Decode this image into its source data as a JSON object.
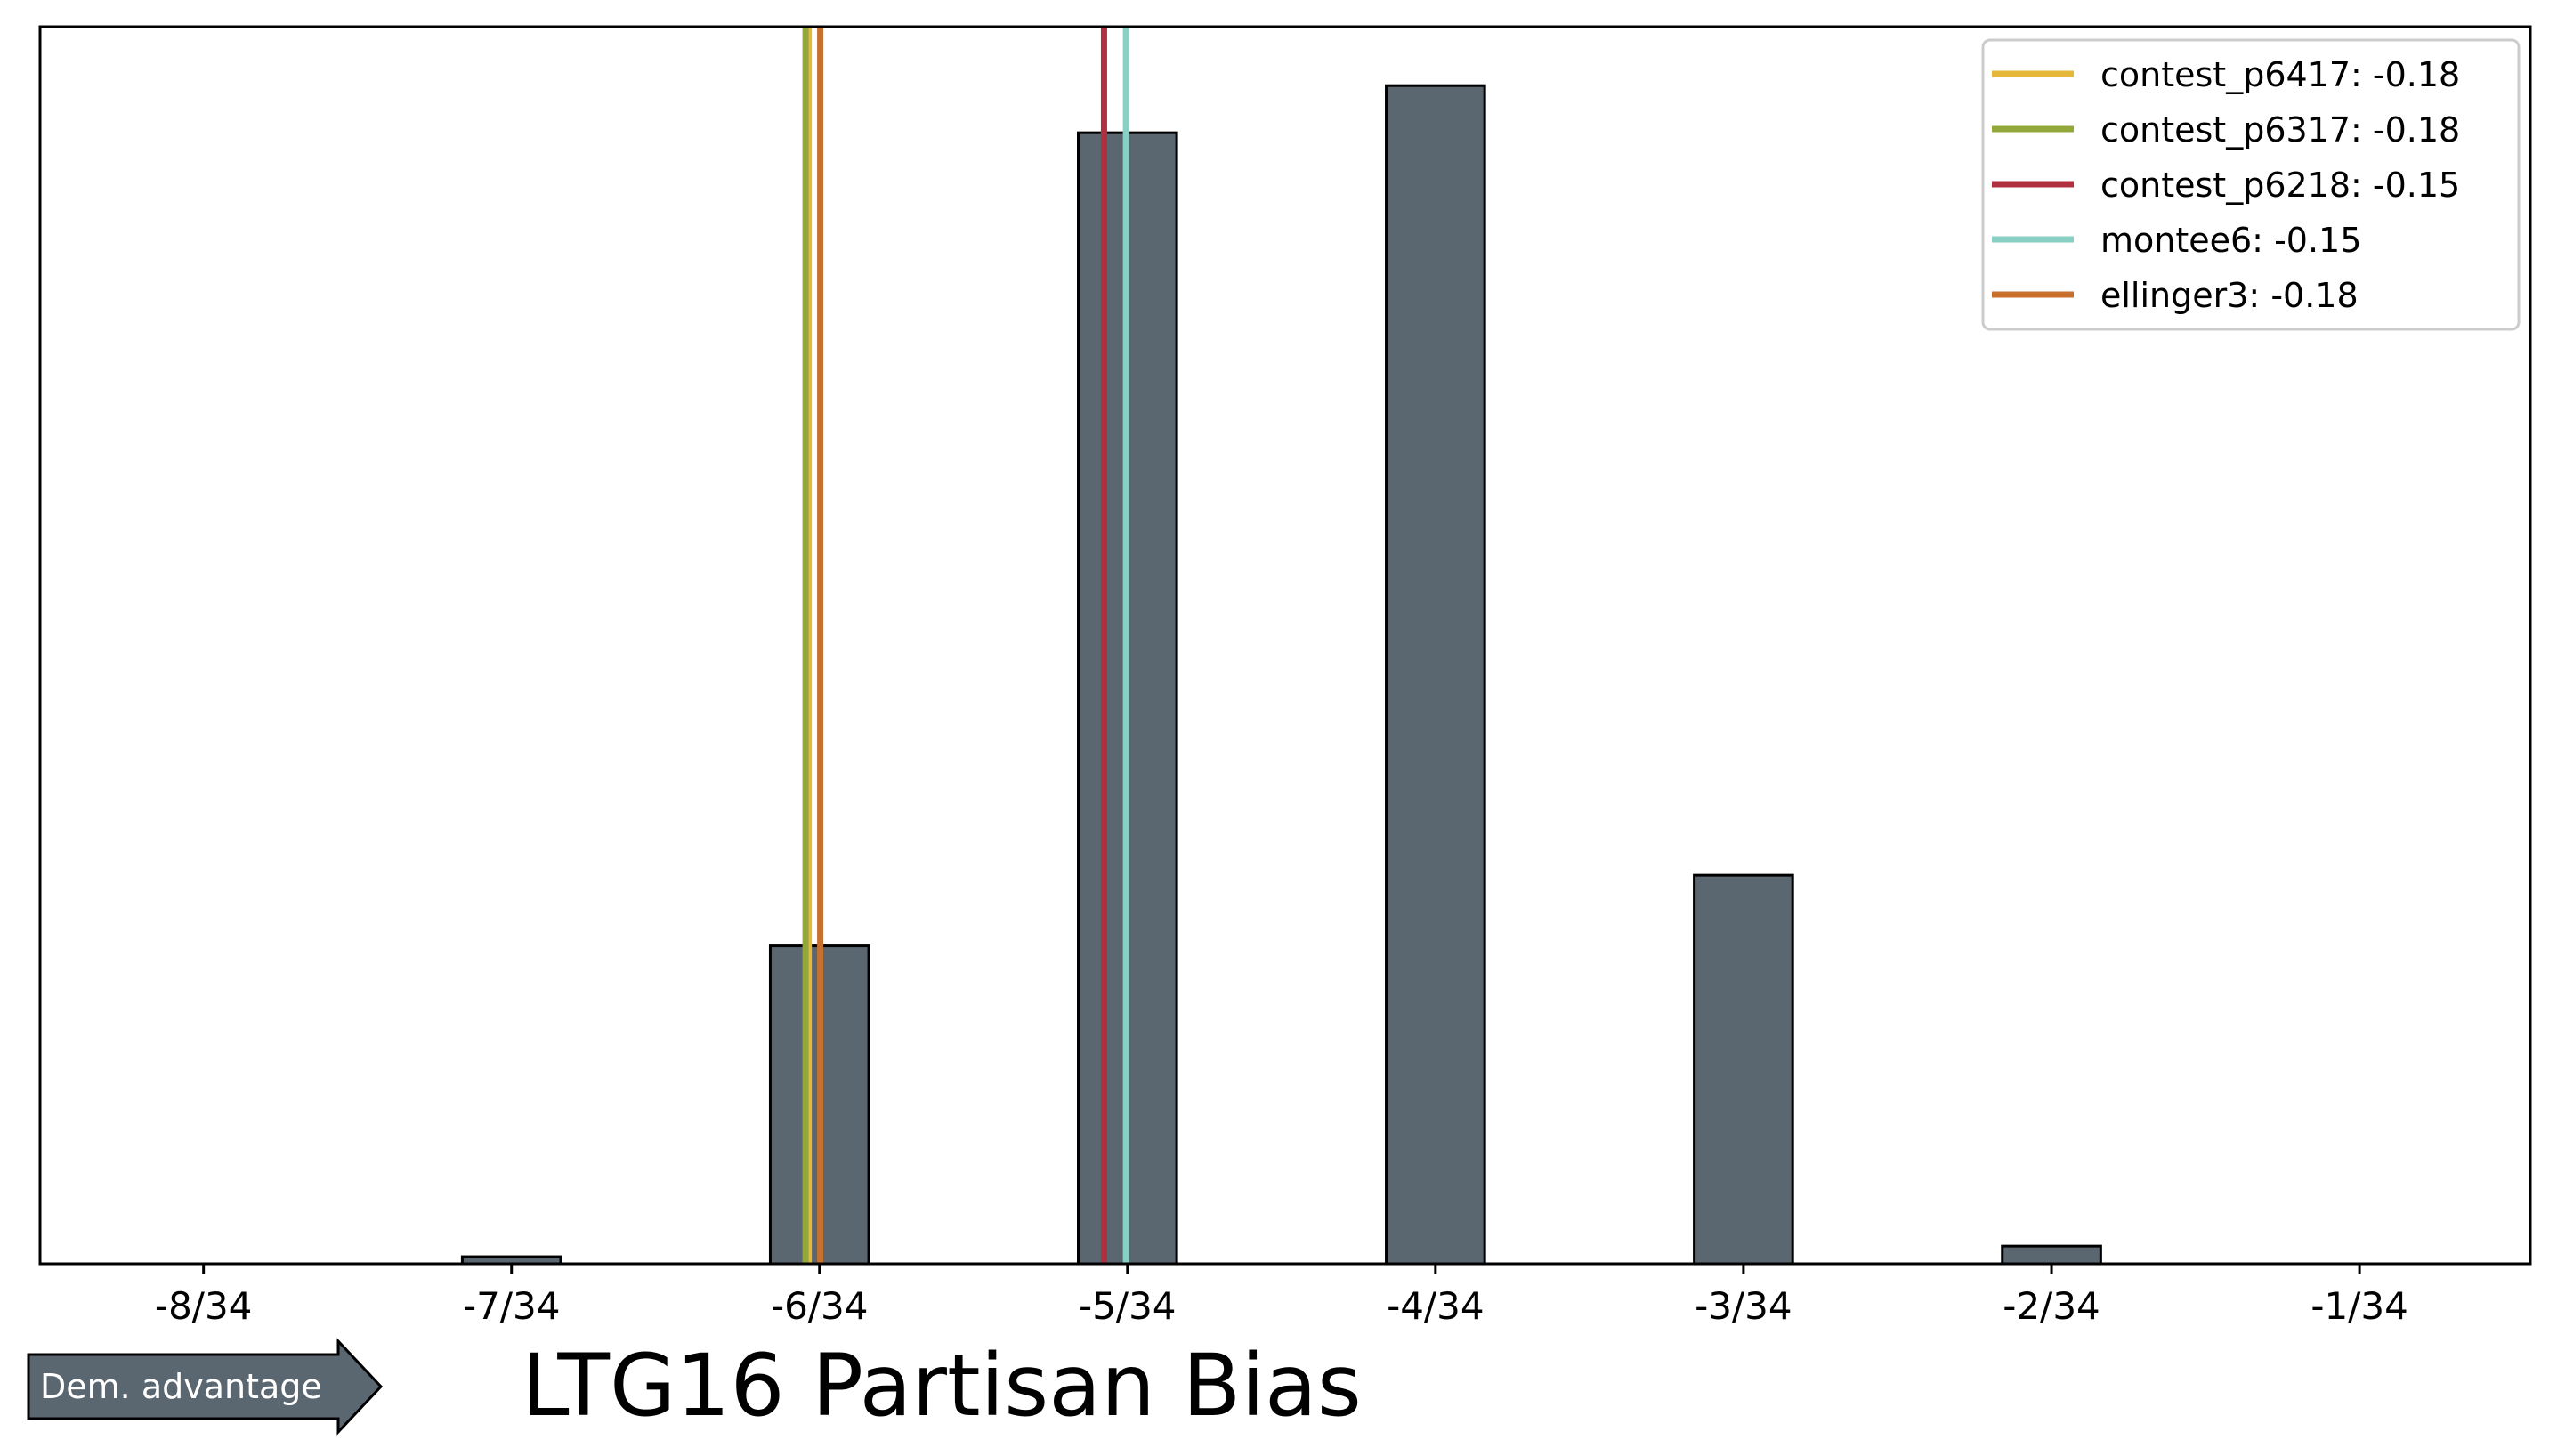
{
  "chart_data": {
    "type": "bar",
    "title": "LTG16 Partisan Bias",
    "xlabel": "",
    "ylabel": "",
    "x_ticks": [
      {
        "value": -0.23529,
        "label": "-8/34"
      },
      {
        "value": -0.20588,
        "label": "-7/34"
      },
      {
        "value": -0.17647,
        "label": "-6/34"
      },
      {
        "value": -0.14706,
        "label": "-5/34"
      },
      {
        "value": -0.11765,
        "label": "-4/34"
      },
      {
        "value": -0.08824,
        "label": "-3/34"
      },
      {
        "value": -0.05882,
        "label": "-2/34"
      },
      {
        "value": -0.02941,
        "label": "-1/34"
      }
    ],
    "xlim": [
      -0.2509,
      -0.0131
    ],
    "ylim": [
      0,
      1.05
    ],
    "bar_width": 0.0094,
    "bar_color": "#5a6670",
    "bars": [
      {
        "x": -0.23529,
        "value": 0
      },
      {
        "x": -0.22059,
        "value": 0
      },
      {
        "x": -0.20588,
        "value": 0.006
      },
      {
        "x": -0.19118,
        "value": 0
      },
      {
        "x": -0.17647,
        "value": 0.27
      },
      {
        "x": -0.16176,
        "value": 0
      },
      {
        "x": -0.14706,
        "value": 0.96
      },
      {
        "x": -0.13235,
        "value": 0
      },
      {
        "x": -0.11765,
        "value": 1.0
      },
      {
        "x": -0.10294,
        "value": 0
      },
      {
        "x": -0.08824,
        "value": 0.33
      },
      {
        "x": -0.07353,
        "value": 0
      },
      {
        "x": -0.05882,
        "value": 0.015
      },
      {
        "x": -0.04412,
        "value": 0
      },
      {
        "x": -0.02941,
        "value": 0
      }
    ],
    "reference_lines": [
      {
        "name": "contest_p6417: -0.18",
        "x": -0.1775,
        "color": "#e6b83a"
      },
      {
        "name": "contest_p6317: -0.18",
        "x": -0.1778,
        "color": "#93a83a"
      },
      {
        "name": "contest_p6218: -0.15",
        "x": -0.1493,
        "color": "#b03040"
      },
      {
        "name": "montee6: -0.15",
        "x": -0.1472,
        "color": "#88cfc4"
      },
      {
        "name": "ellinger3: -0.18",
        "x": -0.1764,
        "color": "#c8702e"
      }
    ],
    "legend_position": "top-right",
    "grid": false,
    "annotation": {
      "text": "Dem. advantage",
      "color": "#5a6670"
    }
  }
}
